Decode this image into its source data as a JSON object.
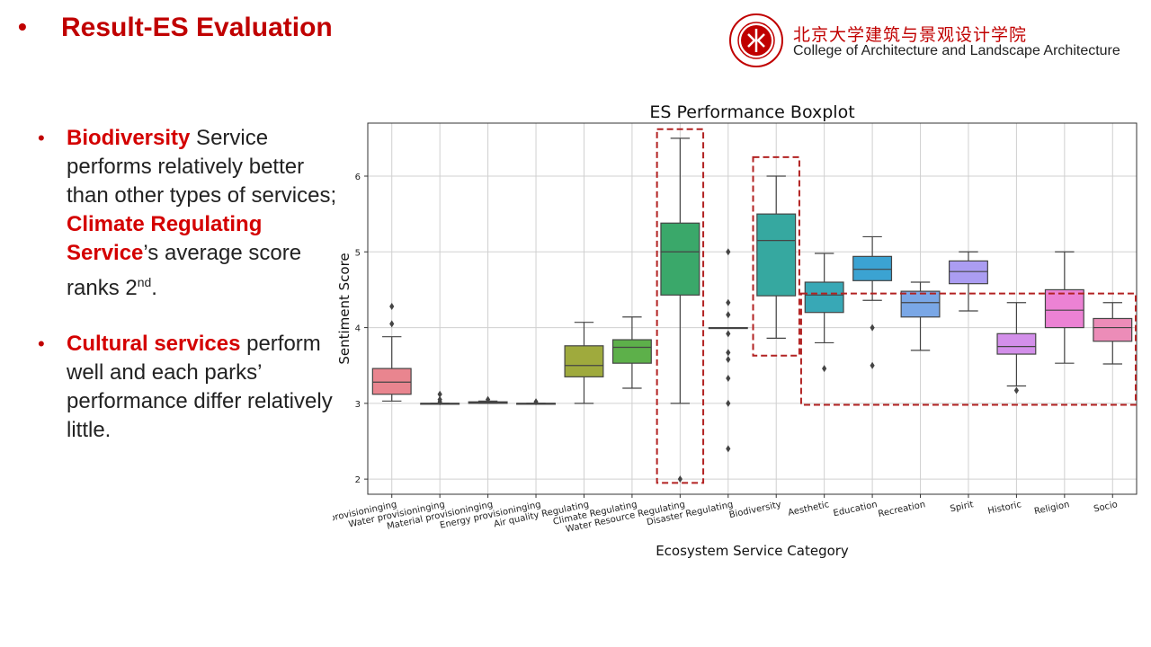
{
  "header": {
    "bullet": "•",
    "title": "Result-ES Evaluation",
    "institution_cn": "北京大学建筑与景观设计学院",
    "institution_en": "College of Architecture and Landscape Architecture"
  },
  "bullets": [
    {
      "parts": [
        {
          "text": "Biodiversity",
          "highlight": true
        },
        {
          "text": " Service performs relatively better than other types of services; ",
          "highlight": false
        },
        {
          "text": "Climate Regulating Service",
          "highlight": true
        },
        {
          "text": "’s average score ranks 2",
          "highlight": false
        },
        {
          "text": "nd",
          "highlight": false,
          "sup": true
        },
        {
          "text": ".",
          "highlight": false
        }
      ]
    },
    {
      "parts": [
        {
          "text": "Cultural services",
          "highlight": true
        },
        {
          "text": " perform well and each parks’ performance differ relatively little.",
          "highlight": false
        }
      ]
    }
  ],
  "colors": {
    "accent": "#c00000",
    "highlight": "#d40000",
    "dashed_box": "#b22222"
  },
  "chart_data": {
    "type": "boxplot",
    "title": "ES Performance Boxplot",
    "xlabel": "Ecosystem Service Category",
    "ylabel": "Sentiment Score",
    "ylim": [
      1.8,
      6.7
    ],
    "yticks": [
      2,
      3,
      4,
      5,
      6
    ],
    "grid": true,
    "categories": [
      {
        "name": "Food provisioninging",
        "q1": 3.12,
        "median": 3.28,
        "q3": 3.46,
        "whisker_low": 3.03,
        "whisker_high": 3.88,
        "outliers": [
          4.05,
          4.28
        ],
        "color": "#e9858f"
      },
      {
        "name": "Water provisioninging",
        "q1": 3.0,
        "median": 3.0,
        "q3": 3.0,
        "whisker_low": 3.0,
        "whisker_high": 3.0,
        "outliers": [
          3.02,
          3.05,
          3.12
        ],
        "color": "#d99a5a"
      },
      {
        "name": "Material provisioninging",
        "q1": 3.0,
        "median": 3.01,
        "q3": 3.02,
        "whisker_low": 3.0,
        "whisker_high": 3.03,
        "outliers": [
          3.05
        ],
        "color": "#c9a24a"
      },
      {
        "name": "Energy provisioninging",
        "q1": 3.0,
        "median": 3.0,
        "q3": 3.0,
        "whisker_low": 3.0,
        "whisker_high": 3.0,
        "outliers": [
          3.02
        ],
        "color": "#a8a845"
      },
      {
        "name": "Air quality Regulating",
        "q1": 3.35,
        "median": 3.5,
        "q3": 3.76,
        "whisker_low": 3.0,
        "whisker_high": 4.07,
        "outliers": [],
        "color": "#9faa3d"
      },
      {
        "name": "Climate Regulating",
        "q1": 3.53,
        "median": 3.74,
        "q3": 3.84,
        "whisker_low": 3.2,
        "whisker_high": 4.14,
        "outliers": [],
        "color": "#5db04a"
      },
      {
        "name": "Water Resource Regulating",
        "q1": 4.43,
        "median": 5.0,
        "q3": 5.38,
        "whisker_low": 3.0,
        "whisker_high": 6.5,
        "outliers": [
          2.0
        ],
        "color": "#3aa86a"
      },
      {
        "name": "Disaster Regulating",
        "q1": 4.0,
        "median": 4.0,
        "q3": 4.0,
        "whisker_low": 4.0,
        "whisker_high": 4.0,
        "outliers": [
          2.4,
          3.0,
          3.33,
          3.58,
          3.67,
          3.92,
          4.17,
          4.33,
          5.0
        ],
        "color": "#3aa89a"
      },
      {
        "name": "Biodiversity",
        "q1": 4.42,
        "median": 5.15,
        "q3": 5.5,
        "whisker_low": 3.86,
        "whisker_high": 6.0,
        "outliers": [],
        "color": "#36a8a0"
      },
      {
        "name": "Aesthetic",
        "q1": 4.2,
        "median": 4.43,
        "q3": 4.6,
        "whisker_low": 3.8,
        "whisker_high": 4.98,
        "outliers": [
          3.46
        ],
        "color": "#38a8b6"
      },
      {
        "name": "Education",
        "q1": 4.62,
        "median": 4.77,
        "q3": 4.94,
        "whisker_low": 4.36,
        "whisker_high": 5.2,
        "outliers": [
          4.0,
          3.5
        ],
        "color": "#3ba3d2"
      },
      {
        "name": "Recreation",
        "q1": 4.14,
        "median": 4.33,
        "q3": 4.48,
        "whisker_low": 3.7,
        "whisker_high": 4.6,
        "outliers": [],
        "color": "#7aa7e6"
      },
      {
        "name": "Spirit",
        "q1": 4.58,
        "median": 4.74,
        "q3": 4.88,
        "whisker_low": 4.22,
        "whisker_high": 5.0,
        "outliers": [],
        "color": "#ab9df2"
      },
      {
        "name": "Historic",
        "q1": 3.65,
        "median": 3.75,
        "q3": 3.92,
        "whisker_low": 3.23,
        "whisker_high": 4.33,
        "outliers": [
          3.17
        ],
        "color": "#d38fea"
      },
      {
        "name": "Religion",
        "q1": 4.0,
        "median": 4.23,
        "q3": 4.5,
        "whisker_low": 3.53,
        "whisker_high": 5.0,
        "outliers": [],
        "color": "#ec82d4"
      },
      {
        "name": "Socio",
        "q1": 3.82,
        "median": 4.0,
        "q3": 4.12,
        "whisker_low": 3.52,
        "whisker_high": 4.33,
        "outliers": [],
        "color": "#ec8cb8"
      }
    ],
    "highlight_groups": [
      {
        "from": 6,
        "to": 6,
        "ymin": 1.95,
        "ymax": 6.62
      },
      {
        "from": 8,
        "to": 8,
        "ymin": 3.63,
        "ymax": 6.25
      },
      {
        "from": 9,
        "to": 15,
        "ymin": 2.98,
        "ymax": 4.45
      }
    ]
  }
}
